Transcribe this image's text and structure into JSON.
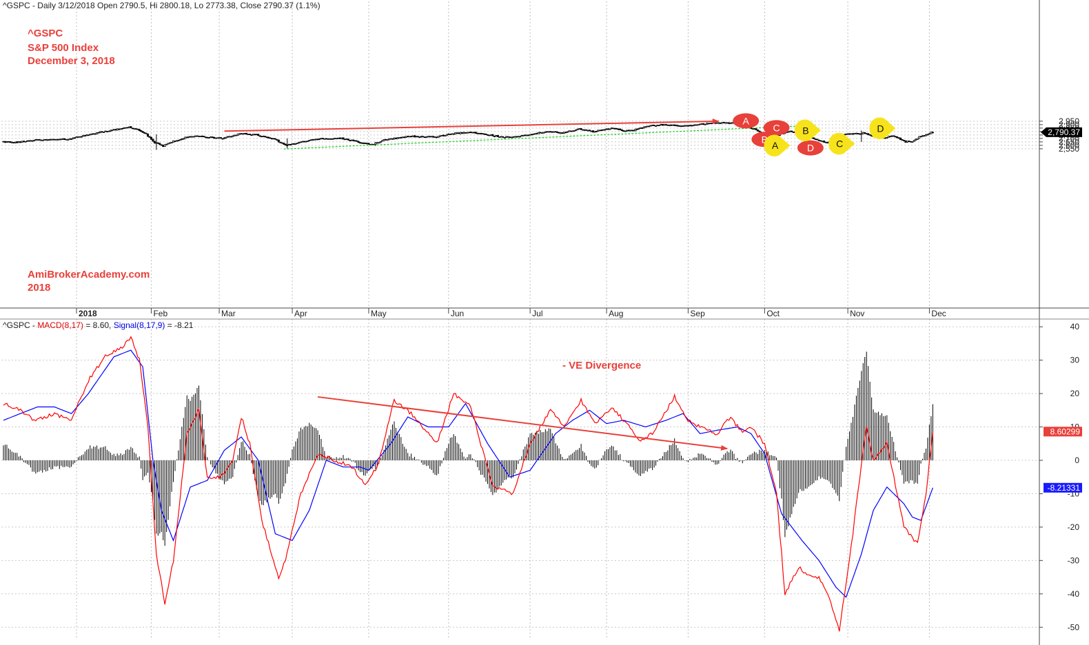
{
  "price_header": {
    "text": "^GSPC - Daily 3/12/2018 Open 2790.5, Hi 2800.18, Lo 2773.38, Close 2790.37 (1.1%)"
  },
  "titles": {
    "symbol": "^GSPC",
    "name": "S&P 500 Index",
    "date": "December 3, 2018",
    "credit": "AmiBrokerAcademy.com",
    "year": "2018",
    "divergence": "- VE Divergence"
  },
  "macd_header": {
    "symbol": "^GSPC",
    "macd_label": "MACD(8,17)",
    "macd_value": "= 8.60,",
    "signal_label": "Signal(8,17,9)",
    "signal_value": "= -8.21"
  },
  "colors": {
    "price_trend": "#e8403a",
    "support": "#22cc22",
    "macd": "#ff0000",
    "signal": "#0000ff",
    "candle": "#000000",
    "red_badge": "#e8403a",
    "yellow_badge": "#f7e31b"
  },
  "chart_data": [
    {
      "type": "candlestick",
      "title": "^GSPC - Daily",
      "ylim": [
        2530,
        2980
      ],
      "y_ticks": [
        2550,
        2600,
        2650,
        2700,
        2750,
        2800,
        2850,
        2900,
        2950
      ],
      "y_tick_labels": [
        "2,550",
        "2,600",
        "2,650",
        "2,700",
        "2,750",
        "2,800",
        "2,850",
        "2,900",
        "2,950"
      ],
      "x_ticks": [
        "2018",
        "Feb",
        "Mar",
        "Apr",
        "May",
        "Jun",
        "Jul",
        "Aug",
        "Sep",
        "Oct",
        "Nov",
        "Dec"
      ],
      "last_price_label": "2,790.37",
      "last_price": 2790.37,
      "anchors": [
        [
          0,
          2650
        ],
        [
          8,
          2640
        ],
        [
          20,
          2680
        ],
        [
          40,
          2690
        ],
        [
          50,
          2750
        ],
        [
          60,
          2800
        ],
        [
          70,
          2840
        ],
        [
          75,
          2860
        ],
        [
          80,
          2830
        ],
        [
          85,
          2760
        ],
        [
          90,
          2640
        ],
        [
          95,
          2590
        ],
        [
          100,
          2650
        ],
        [
          108,
          2710
        ],
        [
          115,
          2740
        ],
        [
          120,
          2720
        ],
        [
          130,
          2700
        ],
        [
          140,
          2770
        ],
        [
          150,
          2750
        ],
        [
          160,
          2700
        ],
        [
          167,
          2600
        ],
        [
          175,
          2640
        ],
        [
          185,
          2690
        ],
        [
          200,
          2700
        ],
        [
          210,
          2650
        ],
        [
          218,
          2610
        ],
        [
          225,
          2680
        ],
        [
          240,
          2730
        ],
        [
          255,
          2720
        ],
        [
          265,
          2770
        ],
        [
          275,
          2790
        ],
        [
          285,
          2760
        ],
        [
          295,
          2720
        ],
        [
          305,
          2730
        ],
        [
          312,
          2760
        ],
        [
          320,
          2800
        ],
        [
          330,
          2780
        ],
        [
          340,
          2840
        ],
        [
          348,
          2800
        ],
        [
          360,
          2850
        ],
        [
          365,
          2810
        ],
        [
          372,
          2820
        ],
        [
          380,
          2880
        ],
        [
          390,
          2900
        ],
        [
          400,
          2880
        ],
        [
          410,
          2900
        ],
        [
          420,
          2930
        ],
        [
          428,
          2920
        ],
        [
          433,
          2925
        ],
        [
          440,
          2860
        ],
        [
          448,
          2780
        ],
        [
          452,
          2720
        ],
        [
          458,
          2760
        ],
        [
          463,
          2800
        ],
        [
          470,
          2780
        ],
        [
          478,
          2700
        ],
        [
          485,
          2640
        ],
        [
          490,
          2670
        ],
        [
          495,
          2760
        ],
        [
          500,
          2770
        ],
        [
          508,
          2780
        ],
        [
          512,
          2740
        ],
        [
          518,
          2700
        ],
        [
          524,
          2740
        ],
        [
          532,
          2650
        ],
        [
          536,
          2660
        ],
        [
          540,
          2720
        ],
        [
          545,
          2760
        ],
        [
          547,
          2790
        ]
      ],
      "extremes": [
        [
          90,
          2535,
          2760
        ],
        [
          167,
          2555,
          2700
        ],
        [
          219,
          2590,
          2650
        ],
        [
          431,
          2930,
          2945
        ],
        [
          455,
          2700,
          2820
        ],
        [
          488,
          2605,
          2680
        ],
        [
          505,
          2650,
          2815
        ],
        [
          547,
          2773.38,
          2800.18
        ]
      ]
    },
    {
      "type": "line",
      "title": "MACD(8,17), Signal(8,17,9)",
      "ylim": [
        -53,
        42
      ],
      "y_ticks": [
        -50,
        -40,
        -30,
        -20,
        -10,
        0,
        10,
        20,
        30,
        40
      ],
      "y_tick_labels": [
        "-50",
        "-40",
        "-30",
        "-20",
        "-10",
        "0",
        "10",
        "20",
        "30",
        "40"
      ],
      "last_macd_label": "8.60299",
      "last_signal_label": "-8.21331",
      "macd_anchors": [
        [
          0,
          17
        ],
        [
          10,
          15
        ],
        [
          18,
          12
        ],
        [
          30,
          14
        ],
        [
          40,
          12
        ],
        [
          50,
          24
        ],
        [
          60,
          31
        ],
        [
          70,
          34
        ],
        [
          75,
          37
        ],
        [
          80,
          30
        ],
        [
          85,
          10
        ],
        [
          90,
          -28
        ],
        [
          95,
          -43
        ],
        [
          100,
          -30
        ],
        [
          108,
          8
        ],
        [
          115,
          15
        ],
        [
          120,
          -5
        ],
        [
          128,
          -5
        ],
        [
          135,
          0
        ],
        [
          140,
          13
        ],
        [
          145,
          5
        ],
        [
          152,
          -18
        ],
        [
          162,
          -35
        ],
        [
          166,
          -30
        ],
        [
          175,
          -10
        ],
        [
          185,
          2
        ],
        [
          195,
          0
        ],
        [
          205,
          -2
        ],
        [
          213,
          -7
        ],
        [
          220,
          -2
        ],
        [
          230,
          18
        ],
        [
          240,
          14
        ],
        [
          250,
          8
        ],
        [
          255,
          5
        ],
        [
          265,
          20
        ],
        [
          275,
          16
        ],
        [
          288,
          -8
        ],
        [
          300,
          -10
        ],
        [
          310,
          5
        ],
        [
          322,
          15
        ],
        [
          330,
          10
        ],
        [
          340,
          18
        ],
        [
          348,
          11
        ],
        [
          358,
          16
        ],
        [
          365,
          12
        ],
        [
          375,
          6
        ],
        [
          382,
          8
        ],
        [
          395,
          19
        ],
        [
          403,
          12
        ],
        [
          410,
          10
        ],
        [
          420,
          8
        ],
        [
          428,
          13
        ],
        [
          435,
          8
        ],
        [
          440,
          10
        ],
        [
          448,
          5
        ],
        [
          455,
          -10
        ],
        [
          460,
          -40
        ],
        [
          468,
          -32
        ],
        [
          475,
          -35
        ],
        [
          480,
          -35
        ],
        [
          485,
          -40
        ],
        [
          492,
          -51
        ],
        [
          498,
          -30
        ],
        [
          504,
          -5
        ],
        [
          508,
          10
        ],
        [
          512,
          0
        ],
        [
          520,
          5
        ],
        [
          530,
          -20
        ],
        [
          538,
          -25
        ],
        [
          543,
          -10
        ],
        [
          547,
          8.6
        ]
      ],
      "signal_anchors": [
        [
          0,
          12
        ],
        [
          20,
          16
        ],
        [
          30,
          16
        ],
        [
          40,
          14
        ],
        [
          50,
          20
        ],
        [
          65,
          31
        ],
        [
          75,
          33
        ],
        [
          82,
          28
        ],
        [
          88,
          0
        ],
        [
          93,
          -15
        ],
        [
          100,
          -24
        ],
        [
          110,
          -8
        ],
        [
          120,
          -6
        ],
        [
          130,
          3
        ],
        [
          140,
          7
        ],
        [
          150,
          0
        ],
        [
          160,
          -22
        ],
        [
          170,
          -24
        ],
        [
          180,
          -15
        ],
        [
          190,
          0
        ],
        [
          200,
          -2
        ],
        [
          210,
          -2
        ],
        [
          215,
          -3
        ],
        [
          228,
          5
        ],
        [
          238,
          13
        ],
        [
          250,
          10
        ],
        [
          262,
          10
        ],
        [
          272,
          17
        ],
        [
          285,
          5
        ],
        [
          298,
          -5
        ],
        [
          310,
          -3
        ],
        [
          325,
          8
        ],
        [
          335,
          12
        ],
        [
          345,
          15
        ],
        [
          355,
          11
        ],
        [
          365,
          12
        ],
        [
          378,
          10
        ],
        [
          390,
          12
        ],
        [
          400,
          14
        ],
        [
          410,
          8
        ],
        [
          420,
          9
        ],
        [
          432,
          10
        ],
        [
          440,
          8
        ],
        [
          448,
          2
        ],
        [
          458,
          -16
        ],
        [
          470,
          -24
        ],
        [
          480,
          -30
        ],
        [
          490,
          -38
        ],
        [
          496,
          -41
        ],
        [
          505,
          -28
        ],
        [
          512,
          -15
        ],
        [
          520,
          -8
        ],
        [
          530,
          -13
        ],
        [
          535,
          -17
        ],
        [
          540,
          -18
        ],
        [
          547,
          -8.21
        ]
      ]
    }
  ],
  "annotations": [
    {
      "text": "A",
      "kind": "red",
      "x": 437,
      "price": 2955
    },
    {
      "text": "C",
      "kind": "red",
      "x": 455,
      "price": 2856
    },
    {
      "text": "B",
      "kind": "red",
      "x": 448,
      "price": 2686
    },
    {
      "text": "D",
      "kind": "red",
      "x": 475,
      "price": 2563
    },
    {
      "text": "A",
      "kind": "yellow",
      "x": 455,
      "price": 2597
    },
    {
      "text": "B",
      "kind": "yellow",
      "x": 473,
      "price": 2816
    },
    {
      "text": "C",
      "kind": "yellow",
      "x": 493,
      "price": 2623
    },
    {
      "text": "D",
      "kind": "yellow",
      "x": 517,
      "price": 2846
    }
  ],
  "trendlines": [
    {
      "name": "price-trendline",
      "from": [
        130,
        2806
      ],
      "to": [
        421,
        2950
      ],
      "arrow": true,
      "color": "#e8403a",
      "panel": "price"
    },
    {
      "name": "support-trendline",
      "from": [
        165,
        2547
      ],
      "to": [
        466,
        2877
      ],
      "arrow": false,
      "color": "#22cc22",
      "panel": "price",
      "dashed": true
    },
    {
      "name": "macd-divergence-trendline",
      "from": [
        185,
        19
      ],
      "to": [
        426,
        3.5
      ],
      "arrow": true,
      "color": "#e8403a",
      "panel": "macd"
    }
  ]
}
